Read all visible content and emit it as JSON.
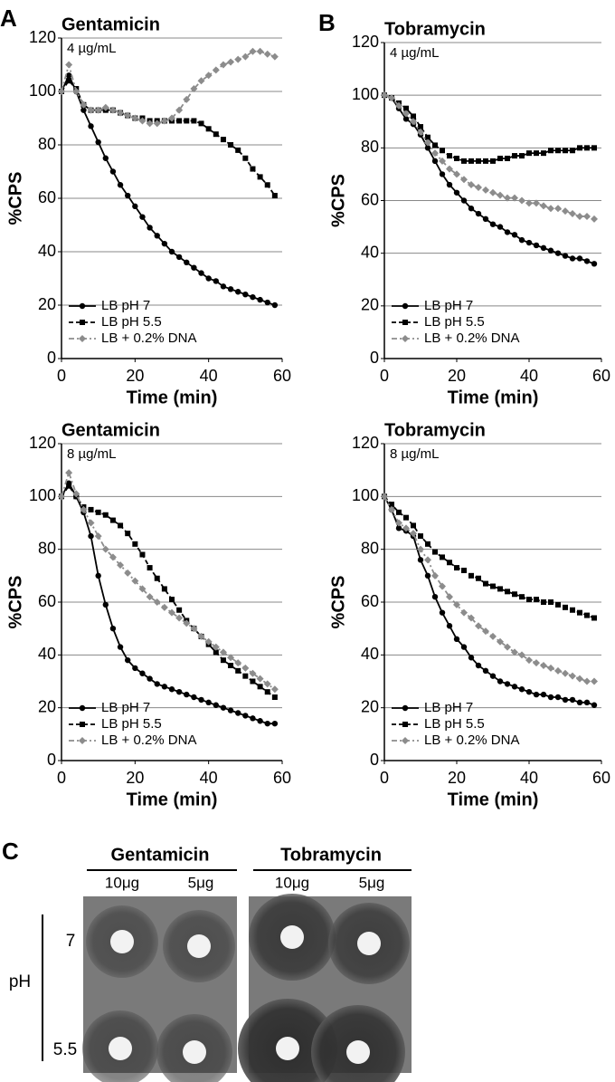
{
  "chart_data": [
    {
      "type": "line",
      "panel_label": "A",
      "title": "Gentamicin",
      "subtitle": "4 µg/mL",
      "xlabel": "Time (min)",
      "ylabel": "%CPS",
      "x": [
        0,
        2,
        4,
        6,
        8,
        10,
        12,
        14,
        16,
        18,
        20,
        22,
        24,
        26,
        28,
        30,
        32,
        34,
        36,
        38,
        40,
        42,
        44,
        46,
        48,
        50,
        52,
        54,
        56,
        58
      ],
      "xlim": [
        0,
        60
      ],
      "xticks": [
        0,
        20,
        40,
        60
      ],
      "ylim": [
        0,
        120
      ],
      "yticks": [
        0,
        20,
        40,
        60,
        80,
        100,
        120
      ],
      "grid": true,
      "legend": "lower left",
      "series": [
        {
          "name": "LB pH 7",
          "color": "#000000",
          "marker": "circle",
          "dash": "solid",
          "values": [
            100,
            106,
            100,
            93,
            87,
            81,
            75,
            70,
            65,
            61,
            57,
            53,
            49,
            46,
            43,
            40,
            38,
            36,
            34,
            32,
            30,
            29,
            27,
            26,
            25,
            24,
            23,
            22,
            21,
            20
          ]
        },
        {
          "name": "LB pH 5.5",
          "color": "#000000",
          "marker": "square",
          "dash": "dashed",
          "values": [
            100,
            104,
            101,
            95,
            93,
            93,
            93,
            93,
            92,
            91,
            90,
            90,
            89,
            89,
            89,
            89,
            89,
            89,
            89,
            88,
            86,
            84,
            82,
            80,
            78,
            75,
            71,
            68,
            65,
            61
          ]
        },
        {
          "name": "LB + 0.2% DNA",
          "color": "#8c8c8c",
          "marker": "diamond",
          "dash": "dashdot",
          "values": [
            100,
            110,
            100,
            95,
            93,
            93,
            94,
            93,
            92,
            91,
            90,
            89,
            88,
            88,
            89,
            90,
            93,
            97,
            101,
            104,
            106,
            108,
            110,
            111,
            112,
            113,
            115,
            115,
            114,
            113
          ]
        }
      ]
    },
    {
      "type": "line",
      "panel_label": "B",
      "title": "Tobramycin",
      "subtitle": "4 µg/mL",
      "xlabel": "Time (min)",
      "ylabel": "%CPS",
      "x": [
        0,
        2,
        4,
        6,
        8,
        10,
        12,
        14,
        16,
        18,
        20,
        22,
        24,
        26,
        28,
        30,
        32,
        34,
        36,
        38,
        40,
        42,
        44,
        46,
        48,
        50,
        52,
        54,
        56,
        58
      ],
      "xlim": [
        0,
        60
      ],
      "xticks": [
        0,
        20,
        40,
        60
      ],
      "ylim": [
        0,
        120
      ],
      "yticks": [
        0,
        20,
        40,
        60,
        80,
        100,
        120
      ],
      "grid": true,
      "legend": "lower left",
      "series": [
        {
          "name": "LB pH 7",
          "color": "#000000",
          "marker": "circle",
          "dash": "solid",
          "values": [
            100,
            99,
            95,
            91,
            89,
            85,
            80,
            75,
            70,
            66,
            63,
            60,
            57,
            55,
            53,
            51,
            50,
            48,
            47,
            45,
            44,
            43,
            42,
            41,
            40,
            39,
            38,
            38,
            37,
            36
          ]
        },
        {
          "name": "LB pH 5.5",
          "color": "#000000",
          "marker": "square",
          "dash": "dashed",
          "values": [
            100,
            99,
            97,
            95,
            92,
            88,
            84,
            81,
            79,
            77,
            76,
            75,
            75,
            75,
            75,
            75,
            76,
            76,
            77,
            77,
            78,
            78,
            78,
            79,
            79,
            79,
            79,
            80,
            80,
            80
          ]
        },
        {
          "name": "LB + 0.2% DNA",
          "color": "#8c8c8c",
          "marker": "diamond",
          "dash": "dashdot",
          "values": [
            100,
            99,
            96,
            93,
            90,
            86,
            82,
            78,
            75,
            72,
            70,
            68,
            66,
            65,
            64,
            63,
            62,
            61,
            61,
            60,
            59,
            59,
            58,
            57,
            57,
            56,
            55,
            54,
            54,
            53
          ]
        }
      ]
    },
    {
      "type": "line",
      "title": "Gentamicin",
      "subtitle": "8 µg/mL",
      "xlabel": "Time (min)",
      "ylabel": "%CPS",
      "x": [
        0,
        2,
        4,
        6,
        8,
        10,
        12,
        14,
        16,
        18,
        20,
        22,
        24,
        26,
        28,
        30,
        32,
        34,
        36,
        38,
        40,
        42,
        44,
        46,
        48,
        50,
        52,
        54,
        56,
        58
      ],
      "xlim": [
        0,
        60
      ],
      "xticks": [
        0,
        20,
        40,
        60
      ],
      "ylim": [
        0,
        120
      ],
      "yticks": [
        0,
        20,
        40,
        60,
        80,
        100,
        120
      ],
      "grid": true,
      "legend": "lower left",
      "series": [
        {
          "name": "LB pH 7",
          "color": "#000000",
          "marker": "circle",
          "dash": "solid",
          "values": [
            100,
            105,
            100,
            94,
            85,
            70,
            59,
            50,
            43,
            38,
            35,
            33,
            31,
            29,
            28,
            27,
            26,
            25,
            24,
            23,
            22,
            21,
            20,
            19,
            18,
            17,
            16,
            15,
            14,
            14
          ]
        },
        {
          "name": "LB pH 5.5",
          "color": "#000000",
          "marker": "square",
          "dash": "dashed",
          "values": [
            100,
            104,
            100,
            96,
            95,
            94,
            93,
            91,
            89,
            86,
            82,
            78,
            73,
            69,
            65,
            61,
            57,
            53,
            50,
            47,
            44,
            41,
            38,
            36,
            34,
            32,
            30,
            28,
            26,
            24
          ]
        },
        {
          "name": "LB + 0.2% DNA",
          "color": "#8c8c8c",
          "marker": "diamond",
          "dash": "dashdot",
          "values": [
            100,
            109,
            101,
            95,
            90,
            85,
            80,
            77,
            74,
            71,
            68,
            65,
            62,
            60,
            58,
            56,
            54,
            52,
            50,
            47,
            45,
            43,
            41,
            39,
            37,
            35,
            33,
            31,
            29,
            27
          ]
        }
      ]
    },
    {
      "type": "line",
      "title": "Tobramycin",
      "subtitle": "8 µg/mL",
      "xlabel": "Time (min)",
      "ylabel": "%CPS",
      "x": [
        0,
        2,
        4,
        6,
        8,
        10,
        12,
        14,
        16,
        18,
        20,
        22,
        24,
        26,
        28,
        30,
        32,
        34,
        36,
        38,
        40,
        42,
        44,
        46,
        48,
        50,
        52,
        54,
        56,
        58
      ],
      "xlim": [
        0,
        60
      ],
      "xticks": [
        0,
        20,
        40,
        60
      ],
      "ylim": [
        0,
        120
      ],
      "yticks": [
        0,
        20,
        40,
        60,
        80,
        100,
        120
      ],
      "grid": true,
      "legend": "lower left",
      "series": [
        {
          "name": "LB pH 7",
          "color": "#000000",
          "marker": "circle",
          "dash": "solid",
          "values": [
            100,
            95,
            88,
            87,
            85,
            76,
            70,
            62,
            56,
            51,
            46,
            43,
            39,
            36,
            34,
            32,
            30,
            29,
            28,
            27,
            26,
            25,
            25,
            24,
            24,
            23,
            23,
            22,
            22,
            21
          ]
        },
        {
          "name": "LB pH 5.5",
          "color": "#000000",
          "marker": "square",
          "dash": "dashed",
          "values": [
            100,
            97,
            94,
            92,
            89,
            85,
            82,
            79,
            77,
            75,
            73,
            72,
            70,
            69,
            67,
            66,
            65,
            64,
            63,
            62,
            61,
            61,
            60,
            60,
            59,
            58,
            57,
            56,
            55,
            54
          ]
        },
        {
          "name": "LB + 0.2% DNA",
          "color": "#8c8c8c",
          "marker": "diamond",
          "dash": "dashdot",
          "values": [
            100,
            95,
            90,
            88,
            86,
            80,
            76,
            70,
            66,
            62,
            59,
            56,
            54,
            51,
            49,
            47,
            45,
            43,
            41,
            40,
            38,
            37,
            36,
            35,
            34,
            33,
            32,
            31,
            30,
            30
          ]
        }
      ]
    }
  ],
  "plate_panel": {
    "panel_label": "C",
    "axis_label": "pH",
    "rows": [
      "7",
      "5.5"
    ],
    "groups": [
      {
        "title": "Gentamicin",
        "doses": [
          "10μg",
          "5μg"
        ]
      },
      {
        "title": "Tobramycin",
        "doses": [
          "10μg",
          "5μg"
        ]
      }
    ]
  }
}
